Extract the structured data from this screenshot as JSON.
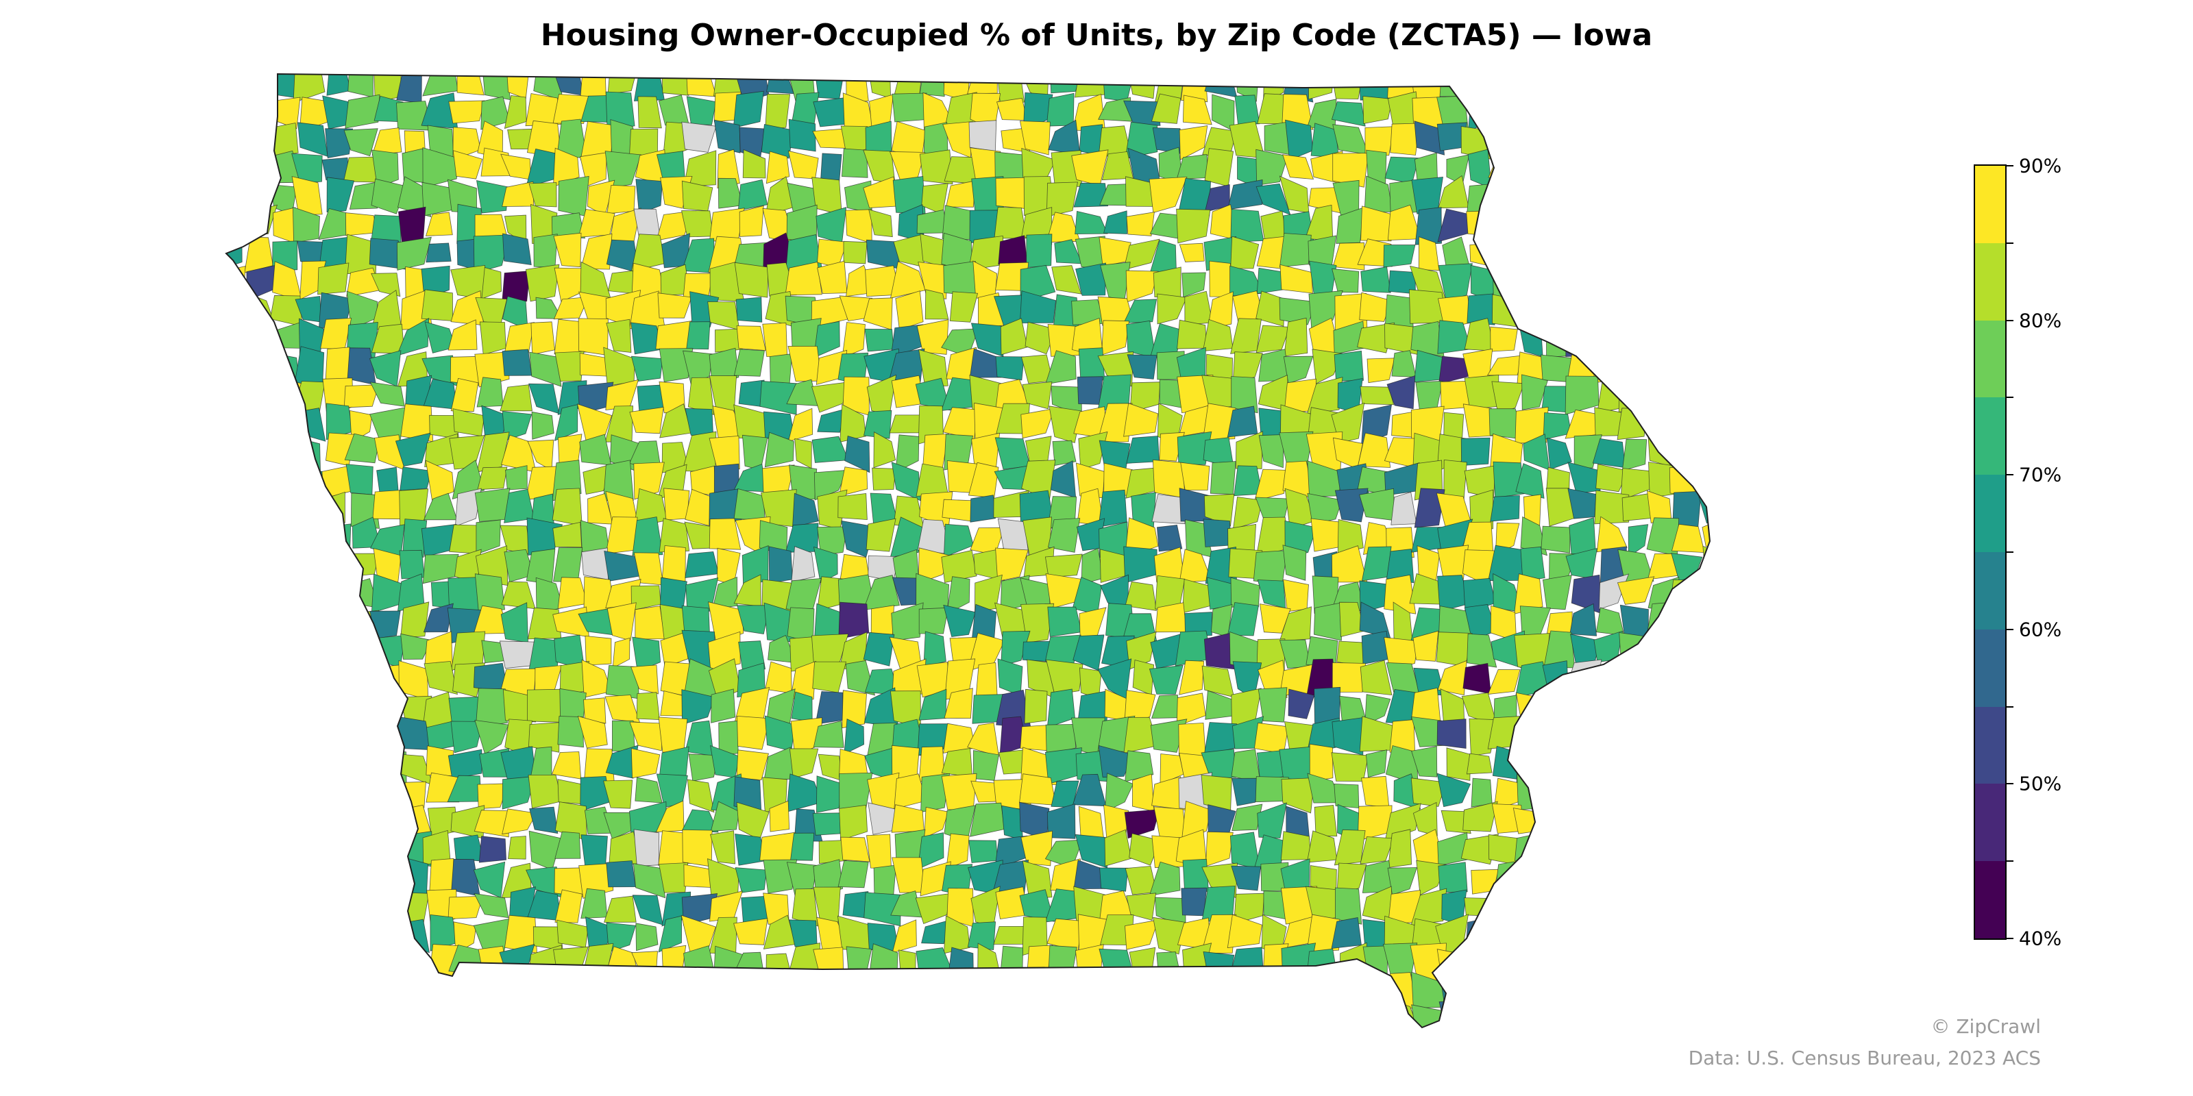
{
  "title": "Housing Owner-Occupied % of Units, by Zip Code (ZCTA5) — Iowa",
  "map": {
    "region": "Iowa",
    "unit": "ZCTA5",
    "color_scale": "viridis",
    "no_data_color": "#d9d9d9",
    "border_color": "#1f1f1f"
  },
  "colorbar": {
    "min": 40,
    "max": 90,
    "step": 5,
    "tick_labels": [
      "90%",
      "80%",
      "70%",
      "60%",
      "50%",
      "40%"
    ],
    "bins": [
      {
        "from": 85,
        "to": 90,
        "color": "#fde725"
      },
      {
        "from": 80,
        "to": 85,
        "color": "#b5de2b"
      },
      {
        "from": 75,
        "to": 80,
        "color": "#6ece58"
      },
      {
        "from": 70,
        "to": 75,
        "color": "#35b779"
      },
      {
        "from": 65,
        "to": 70,
        "color": "#1f9e89"
      },
      {
        "from": 60,
        "to": 65,
        "color": "#26828e"
      },
      {
        "from": 55,
        "to": 60,
        "color": "#31688e"
      },
      {
        "from": 50,
        "to": 55,
        "color": "#3e4989"
      },
      {
        "from": 45,
        "to": 50,
        "color": "#482878"
      },
      {
        "from": 40,
        "to": 45,
        "color": "#440154"
      }
    ]
  },
  "credits": {
    "brand": "© ZipCrawl",
    "source": "Data: U.S. Census Bureau, 2023 ACS"
  }
}
